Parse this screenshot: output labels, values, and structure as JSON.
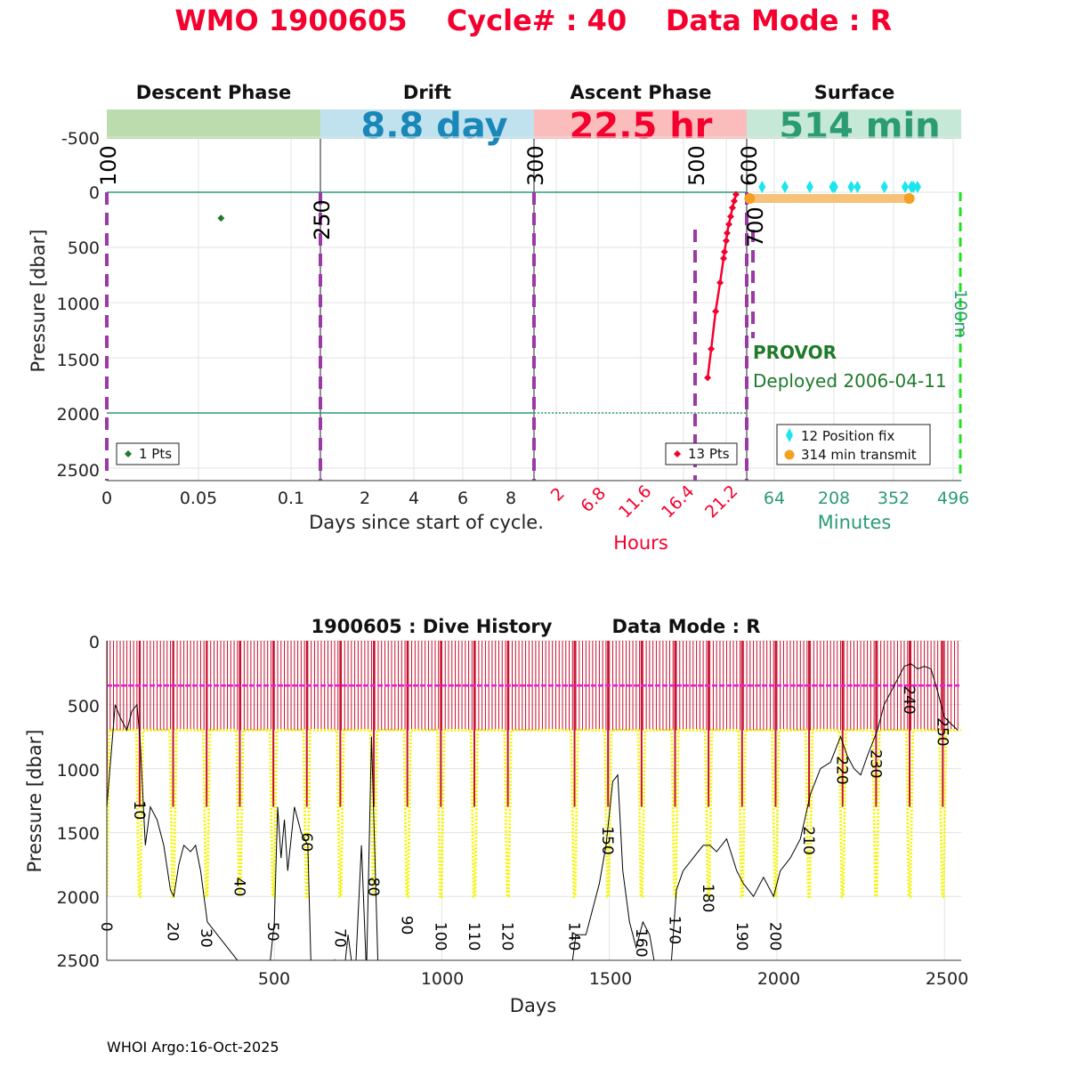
{
  "header": {
    "wmo": "WMO 1900605",
    "cycle": "Cycle# : 40",
    "mode": "Data Mode : R"
  },
  "phases": {
    "descent": {
      "label": "Descent Phase",
      "color": "#bcdcae"
    },
    "drift": {
      "label": "Drift",
      "duration": "8.8 day",
      "color": "#bfe2ee",
      "text_color": "#1a87b9"
    },
    "ascent": {
      "label": "Ascent Phase",
      "duration": "22.5 hr",
      "color": "#fbbcbc",
      "text_color": "#f5002e"
    },
    "surface": {
      "label": "Surface",
      "duration": "514 min",
      "color": "#c6e8d6",
      "text_color": "#2a9b72"
    }
  },
  "top_axes": {
    "ylabel": "Pressure [dbar]",
    "yticks": [
      "-500",
      "0",
      "500",
      "1000",
      "1500",
      "2000",
      "2500"
    ],
    "descent_xticks": [
      "0",
      "0.05",
      "0.1"
    ],
    "drift_xticks": [
      "2",
      "4",
      "6",
      "8"
    ],
    "ascent_xticks": [
      "2",
      "6.8",
      "11.6",
      "16.4",
      "21.2"
    ],
    "surface_xticks": [
      "64",
      "208",
      "352",
      "496"
    ],
    "xlabel_days": "Days since start of cycle.",
    "xlabel_hours": "Hours",
    "xlabel_minutes": "Minutes",
    "markers": [
      "100",
      "250",
      "300",
      "500",
      "600",
      "700"
    ],
    "surface_marker": "100m"
  },
  "float_info": {
    "type": "PROVOR",
    "deployed": "Deployed 2006-04-11"
  },
  "legends": {
    "descent": "1 Pts",
    "ascent": "13 Pts",
    "position_fix": "12 Position fix",
    "transmit": "314 min transmit"
  },
  "bottom_axes": {
    "title_left": "1900605 : Dive History",
    "title_right": "Data Mode : R",
    "ylabel": "Pressure [dbar]",
    "xlabel": "Days",
    "yticks": [
      "0",
      "500",
      "1000",
      "1500",
      "2000",
      "2500"
    ],
    "xticks": [
      "500",
      "1000",
      "1500",
      "2000",
      "2500"
    ]
  },
  "footer": "WHOI Argo:16-Oct-2025",
  "chart_data": [
    {
      "type": "scatter",
      "name": "cycle-profile",
      "descent_points": [
        {
          "day": 0.062,
          "pressure": 235
        }
      ],
      "ascent_points": [
        {
          "hour": 19.1,
          "pressure": 1680
        },
        {
          "hour": 19.5,
          "pressure": 1420
        },
        {
          "hour": 20.0,
          "pressure": 1080
        },
        {
          "hour": 20.5,
          "pressure": 820
        },
        {
          "hour": 20.9,
          "pressure": 600
        },
        {
          "hour": 21.0,
          "pressure": 540
        },
        {
          "hour": 21.2,
          "pressure": 440
        },
        {
          "hour": 21.3,
          "pressure": 370
        },
        {
          "hour": 21.5,
          "pressure": 290
        },
        {
          "hour": 21.7,
          "pressure": 220
        },
        {
          "hour": 21.9,
          "pressure": 140
        },
        {
          "hour": 22.1,
          "pressure": 80
        },
        {
          "hour": 22.3,
          "pressure": 20
        }
      ],
      "position_fix_minutes": [
        35,
        90,
        150,
        205,
        210,
        250,
        265,
        330,
        380,
        395,
        400,
        410
      ],
      "transmit_minutes": [
        5,
        390
      ],
      "surface_level": 0,
      "drift_pressure": 2000,
      "ylim": [
        2600,
        -600
      ],
      "grid": true
    },
    {
      "type": "line",
      "name": "dive-history",
      "xlim": [
        0,
        2550
      ],
      "ylim": [
        2500,
        0
      ],
      "park_pressure": 700,
      "transmit_line_pressure": 350,
      "profile_pressure": 2000,
      "cycle_day_start": 0,
      "cycle_day_end": 2540,
      "labeled_cycles": [
        {
          "label": "0",
          "day": 0
        },
        {
          "label": "10",
          "day": 98
        },
        {
          "label": "20",
          "day": 198
        },
        {
          "label": "30",
          "day": 298
        },
        {
          "label": "40",
          "day": 397
        },
        {
          "label": "50",
          "day": 497
        },
        {
          "label": "60",
          "day": 597
        },
        {
          "label": "70",
          "day": 697
        },
        {
          "label": "80",
          "day": 797
        },
        {
          "label": "90",
          "day": 897
        },
        {
          "label": "100",
          "day": 997
        },
        {
          "label": "110",
          "day": 1097
        },
        {
          "label": "120",
          "day": 1197
        },
        {
          "label": "140",
          "day": 1396
        },
        {
          "label": "150",
          "day": 1496
        },
        {
          "label": "160",
          "day": 1596
        },
        {
          "label": "170",
          "day": 1696
        },
        {
          "label": "180",
          "day": 1796
        },
        {
          "label": "190",
          "day": 1896
        },
        {
          "label": "200",
          "day": 1996
        },
        {
          "label": "210",
          "day": 2096
        },
        {
          "label": "220",
          "day": 2196
        },
        {
          "label": "230",
          "day": 2296
        },
        {
          "label": "240",
          "day": 2396
        },
        {
          "label": "250",
          "day": 2495
        }
      ],
      "label_pressures": [
        2200,
        1250,
        2200,
        2250,
        1850,
        2200,
        1500,
        2250,
        1850,
        2150,
        2200,
        2200,
        2200,
        2200,
        1450,
        2250,
        2150,
        1900,
        2200,
        2200,
        1450,
        900,
        850,
        350,
        600
      ],
      "bottom_depth_days": [
        0,
        25,
        40,
        60,
        75,
        90,
        100,
        115,
        130,
        150,
        170,
        190,
        200,
        215,
        230,
        250,
        265,
        280,
        300,
        330,
        360,
        390,
        420,
        480,
        500,
        510,
        520,
        530,
        540,
        560,
        580,
        600,
        610,
        650,
        680,
        700,
        720,
        740,
        760,
        775,
        790,
        810,
        830,
        850,
        870,
        900,
        1380,
        1400,
        1430,
        1470,
        1490,
        1510,
        1525,
        1540,
        1560,
        1580,
        1600,
        1620,
        1640,
        1660,
        1680,
        1700,
        1720,
        1750,
        1780,
        1800,
        1820,
        1850,
        1880,
        1900,
        1930,
        1960,
        1990,
        2010,
        2040,
        2070,
        2100,
        2130,
        2160,
        2190,
        2210,
        2230,
        2250,
        2270,
        2300,
        2320,
        2340,
        2360,
        2380,
        2400,
        2420,
        2440,
        2460,
        2480,
        2500,
        2520,
        2540
      ],
      "bottom_depth_pressures": [
        1300,
        500,
        600,
        700,
        550,
        500,
        800,
        1600,
        1300,
        1400,
        1600,
        1950,
        2000,
        1750,
        1600,
        1650,
        1600,
        1800,
        2200,
        2300,
        2400,
        2500,
        2700,
        2700,
        2200,
        1300,
        1700,
        1400,
        1800,
        1300,
        1500,
        1600,
        2600,
        2700,
        2500,
        2800,
        2300,
        2700,
        1600,
        2600,
        750,
        2600,
        2700,
        2700,
        2700,
        2600,
        2700,
        2300,
        2300,
        1900,
        1600,
        1100,
        1050,
        1800,
        2200,
        2400,
        2200,
        2300,
        2600,
        2700,
        2700,
        1950,
        1800,
        1700,
        1600,
        1600,
        1650,
        1550,
        1800,
        1900,
        2000,
        1850,
        2000,
        1800,
        1700,
        1550,
        1200,
        1000,
        950,
        750,
        900,
        1000,
        1050,
        900,
        700,
        500,
        400,
        300,
        200,
        180,
        220,
        200,
        220,
        400,
        600,
        650,
        700
      ]
    }
  ]
}
